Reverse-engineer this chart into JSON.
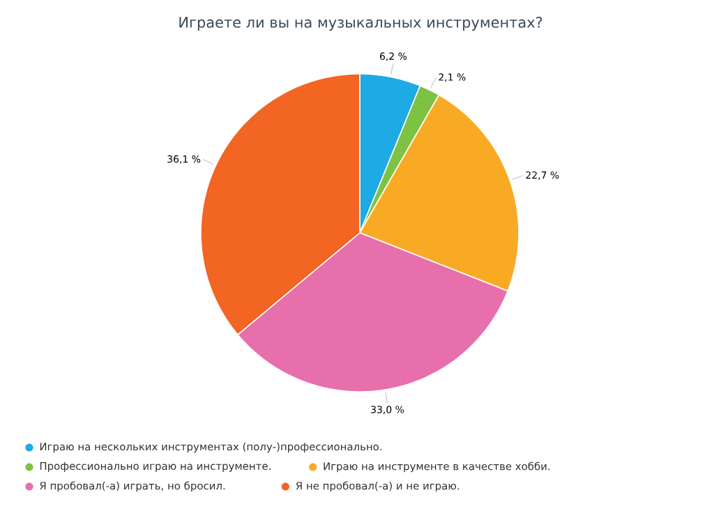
{
  "chart_data": {
    "type": "pie",
    "title": "Играете ли вы на музыкальных инструментах?",
    "categories": [
      "Играю на нескольких инструментах (полу-)профессионально.",
      "Профессионально играю на инструменте.",
      "Играю на инструменте в качестве хобби.",
      "Я пробовал(-а) играть, но бросил.",
      "Я не пробовал(-а) и не играю."
    ],
    "values": [
      6.2,
      2.1,
      22.7,
      33.0,
      36.1
    ],
    "value_labels": [
      "6,2 %",
      "2,1 %",
      "22,7 %",
      "33,0 %",
      "36,1 %"
    ],
    "colors": [
      "#1eaae4",
      "#7dc243",
      "#f9aa25",
      "#e76fab",
      "#f26522"
    ],
    "legend": "bottom"
  }
}
